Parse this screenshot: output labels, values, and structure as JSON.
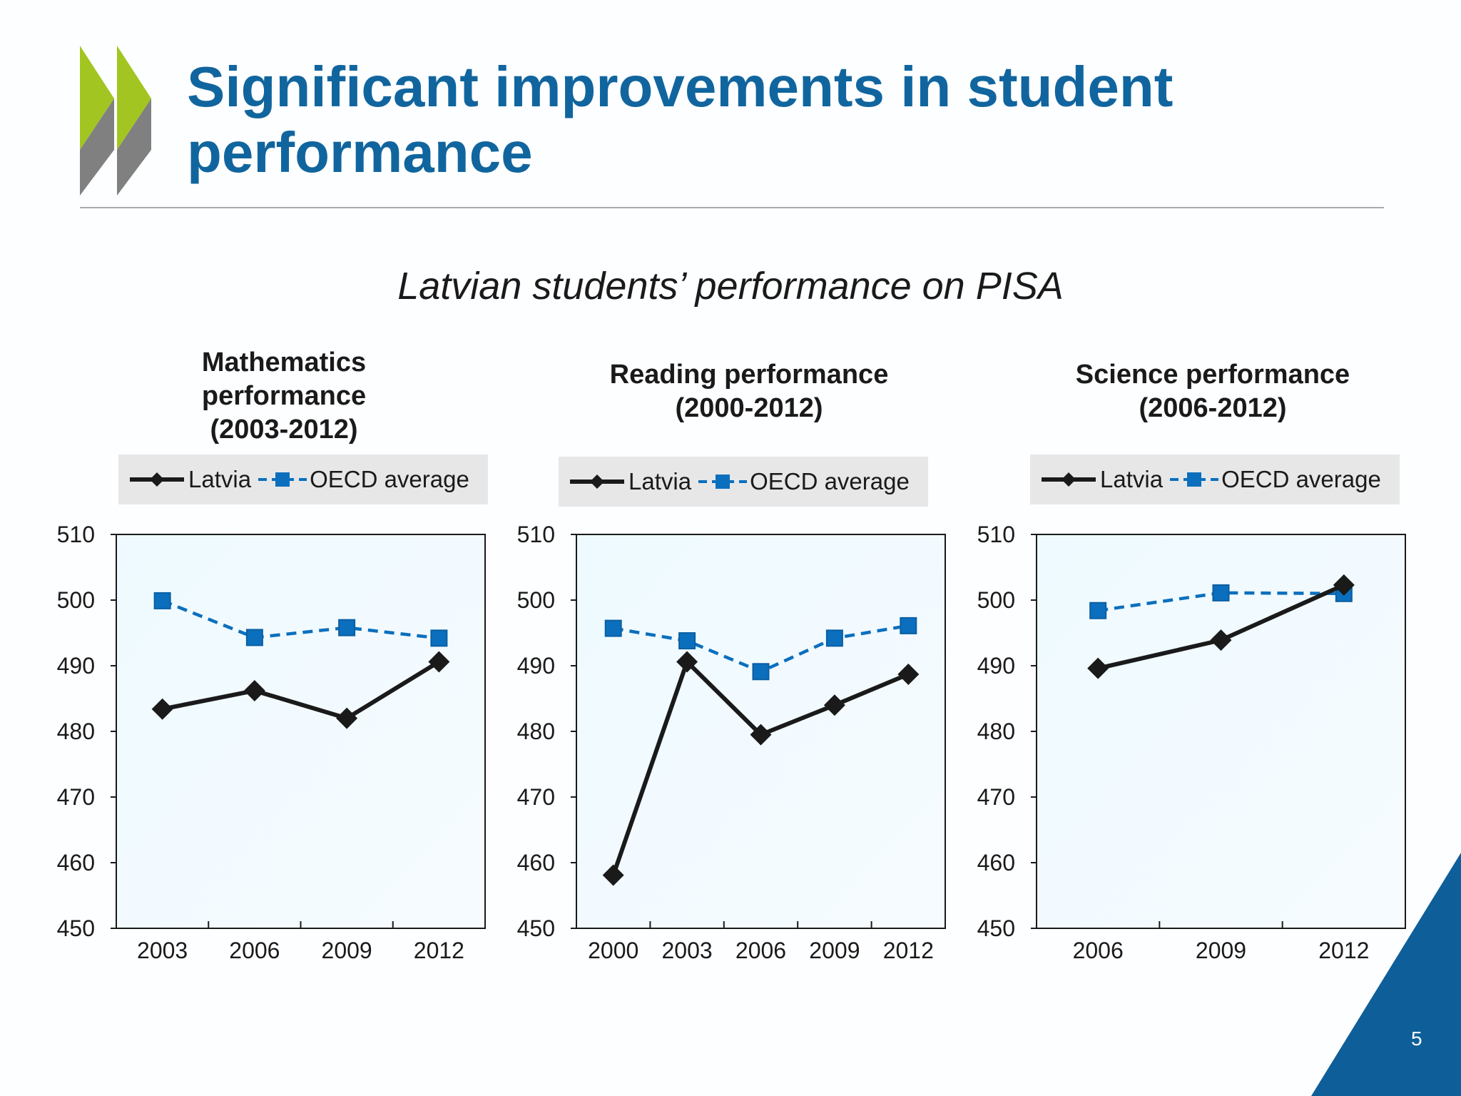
{
  "slide": {
    "title": "Significant improvements in student performance",
    "subtitle": "Latvian students’ performance on PISA",
    "page_number": "5",
    "colors": {
      "title": "#11659e",
      "latvia": "#1a1a1a",
      "oecd": "#0b6fbd",
      "accent_green": "#a3c521",
      "accent_gray": "#808080",
      "corner_blue": "#0e5f99"
    },
    "logo_icon": "oecd-chevrons-icon"
  },
  "legend": {
    "latvia": "Latvia",
    "oecd": "OECD average"
  },
  "chart_data": [
    {
      "type": "line",
      "title_lines": [
        "Mathematics",
        "performance",
        "(2003-2012)"
      ],
      "x": [
        "2003",
        "2006",
        "2009",
        "2012"
      ],
      "series": [
        {
          "name": "Latvia",
          "values": [
            483.4,
            486.2,
            482.0,
            490.6
          ]
        },
        {
          "name": "OECD average",
          "values": [
            499.9,
            494.3,
            495.8,
            494.2
          ]
        }
      ],
      "ylim": [
        450,
        510
      ],
      "yticks": [
        450,
        460,
        470,
        480,
        490,
        500,
        510
      ],
      "xlabel": "",
      "ylabel": "",
      "grid": false,
      "legend_position": "top"
    },
    {
      "type": "line",
      "title_lines": [
        "Reading performance",
        "(2000-2012)"
      ],
      "x": [
        "2000",
        "2003",
        "2006",
        "2009",
        "2012"
      ],
      "series": [
        {
          "name": "Latvia",
          "values": [
            458.1,
            490.6,
            479.5,
            484.0,
            488.7
          ]
        },
        {
          "name": "OECD average",
          "values": [
            495.7,
            493.8,
            489.1,
            494.2,
            496.1
          ]
        }
      ],
      "ylim": [
        450,
        510
      ],
      "yticks": [
        450,
        460,
        470,
        480,
        490,
        500,
        510
      ],
      "xlabel": "",
      "ylabel": "",
      "grid": false,
      "legend_position": "top"
    },
    {
      "type": "line",
      "title_lines": [
        "Science performance",
        "(2006-2012)"
      ],
      "x": [
        "2006",
        "2009",
        "2012"
      ],
      "series": [
        {
          "name": "Latvia",
          "values": [
            489.6,
            493.9,
            502.3
          ]
        },
        {
          "name": "OECD average",
          "values": [
            498.4,
            501.1,
            501.0
          ]
        }
      ],
      "ylim": [
        450,
        510
      ],
      "yticks": [
        450,
        460,
        470,
        480,
        490,
        500,
        510
      ],
      "xlabel": "",
      "ylabel": "",
      "grid": false,
      "legend_position": "top"
    }
  ]
}
